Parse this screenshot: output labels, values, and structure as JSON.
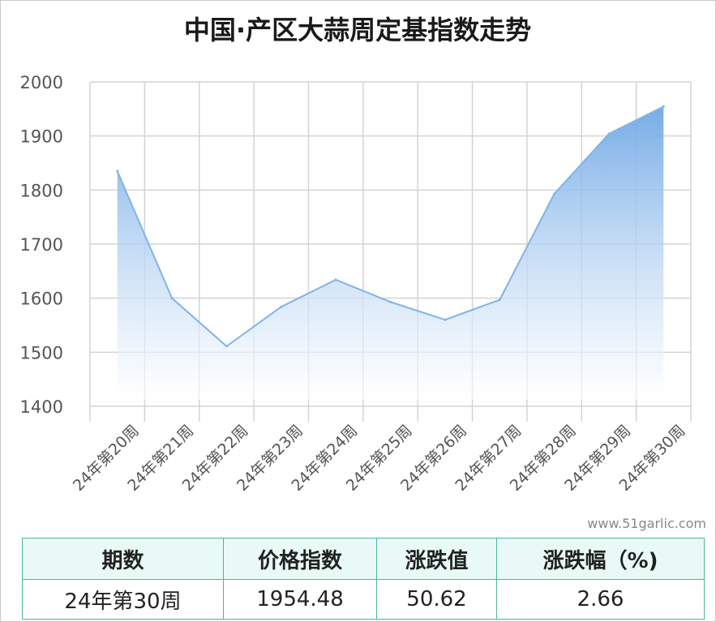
{
  "chart_data": {
    "type": "area",
    "title": "中国·产区大蒜周定基指数走势",
    "categories": [
      "24年第20周",
      "24年第21周",
      "24年第22周",
      "24年第23周",
      "24年第24周",
      "24年第25周",
      "24年第26周",
      "24年第27周",
      "24年第28周",
      "24年第29周",
      "24年第30周"
    ],
    "values": [
      1835,
      1600,
      1511,
      1584,
      1634,
      1593,
      1560,
      1597,
      1793,
      1904,
      1954.48
    ],
    "ylim": [
      1400,
      2000
    ],
    "yticks": [
      1400,
      1500,
      1600,
      1700,
      1800,
      1900,
      2000
    ],
    "grid": true,
    "colors": {
      "line": "#7fb3e8",
      "fill_top": "#6fa8e6",
      "fill_bottom": "#ffffff",
      "grid": "#d4d4d4"
    }
  },
  "watermark": "www.51garlic.com",
  "summary_table": {
    "headers": [
      "期数",
      "价格指数",
      "涨跌值",
      "涨跌幅（%)"
    ],
    "row": [
      "24年第30周",
      "1954.48",
      "50.62",
      "2.66"
    ],
    "colors": {
      "border": "#49b79e",
      "header_bg": "#e9faf6"
    }
  }
}
